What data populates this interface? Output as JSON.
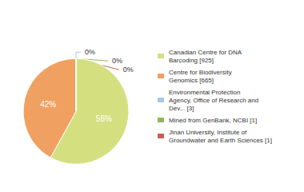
{
  "chart_data": {
    "type": "pie",
    "categories": [
      "Canadian Centre for DNA\nBarcoding [925]",
      "Centre for Biodiversity\nGenomics [665]",
      "Environmental Protection\nAgency, Office of Research and\nDev... [3]",
      "Mined from GenBank, NCBI [1]",
      "Jinan University, Institute of\nGroundwater and Earth Sciences [1]"
    ],
    "values": [
      58,
      42,
      0,
      0,
      0
    ],
    "value_labels": [
      "58%",
      "42%",
      "0%",
      "0%",
      "0%"
    ],
    "colors": [
      "#d4e080",
      "#f0a060",
      "#a8c8e8",
      "#90b860",
      "#c86050"
    ],
    "data_labels": true,
    "legend": "right"
  }
}
